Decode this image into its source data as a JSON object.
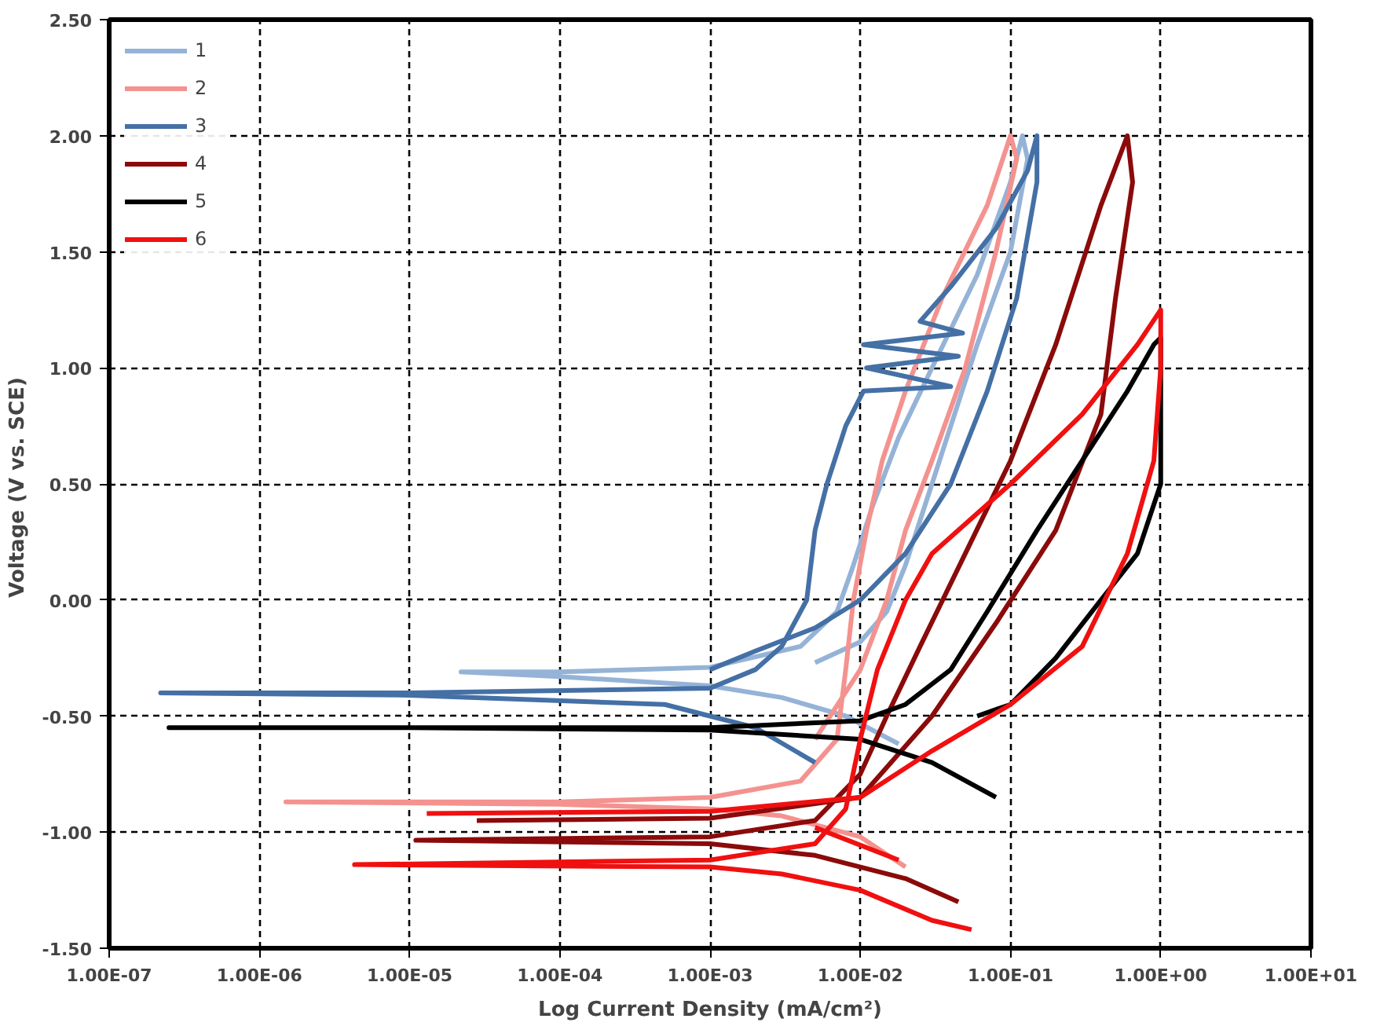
{
  "chart_data": {
    "type": "line",
    "xlabel": "Log Current Density (mA/cm²)",
    "ylabel": "Voltage  (V vs. SCE)",
    "log": "x",
    "xlim": [
      1e-07,
      10
    ],
    "ylim": [
      -1.5,
      2.5
    ],
    "xticks": [
      {
        "value": 1e-07,
        "label": "1.00E-07"
      },
      {
        "value": 1e-06,
        "label": "1.00E-06"
      },
      {
        "value": 1e-05,
        "label": "1.00E-05"
      },
      {
        "value": 0.0001,
        "label": "1.00E-04"
      },
      {
        "value": 0.001,
        "label": "1.00E-03"
      },
      {
        "value": 0.01,
        "label": "1.00E-02"
      },
      {
        "value": 0.1,
        "label": "1.00E-01"
      },
      {
        "value": 1,
        "label": "1.00E+00"
      },
      {
        "value": 10,
        "label": "1.00E+01"
      }
    ],
    "yticks": [
      {
        "value": -1.5,
        "label": "-1.50"
      },
      {
        "value": -1,
        "label": "-1.00"
      },
      {
        "value": -0.5,
        "label": "-0.50"
      },
      {
        "value": 0,
        "label": "0.00"
      },
      {
        "value": 0.5,
        "label": "0.50"
      },
      {
        "value": 1,
        "label": "1.00"
      },
      {
        "value": 1.5,
        "label": "1.50"
      },
      {
        "value": 2,
        "label": "2.00"
      },
      {
        "value": 2.5,
        "label": "2.50"
      }
    ],
    "grid": true,
    "legend": "top left",
    "line_style": "solid",
    "marker": "none",
    "series": [
      {
        "name": "1",
        "color": "#95b3d7",
        "x": [
          0.018,
          0.008,
          0.003,
          0.001,
          0.0001,
          2.2e-05,
          0.0001,
          0.001,
          0.004,
          0.007,
          0.009,
          0.012,
          0.018,
          0.03,
          0.06,
          0.1,
          0.12,
          0.13,
          0.1,
          0.06,
          0.03,
          0.02,
          0.015,
          0.01,
          0.005
        ],
        "values": [
          -0.62,
          -0.5,
          -0.42,
          -0.37,
          -0.33,
          -0.31,
          -0.31,
          -0.29,
          -0.2,
          -0.05,
          0.15,
          0.4,
          0.7,
          1.0,
          1.4,
          1.8,
          2.0,
          1.9,
          1.5,
          1.1,
          0.5,
          0.15,
          -0.05,
          -0.18,
          -0.27
        ]
      },
      {
        "name": "2",
        "color": "#f4928f",
        "x": [
          0.02,
          0.01,
          0.003,
          0.001,
          0.0001,
          1.5e-06,
          0.0001,
          0.001,
          0.004,
          0.007,
          0.008,
          0.009,
          0.011,
          0.014,
          0.02,
          0.035,
          0.07,
          0.1,
          0.11,
          0.08,
          0.05,
          0.03,
          0.02,
          0.015,
          0.01,
          0.005
        ],
        "values": [
          -1.15,
          -1.02,
          -0.93,
          -0.9,
          -0.88,
          -0.87,
          -0.87,
          -0.85,
          -0.78,
          -0.6,
          -0.3,
          0.0,
          0.3,
          0.6,
          0.9,
          1.3,
          1.7,
          2.0,
          1.9,
          1.5,
          1.0,
          0.6,
          0.3,
          0.0,
          -0.3,
          -0.6
        ]
      },
      {
        "name": "3",
        "color": "#4470a5",
        "x": [
          0.005,
          0.002,
          0.0005,
          1e-05,
          2.2e-07,
          1e-05,
          0.001,
          0.002,
          0.003,
          0.0044,
          0.005,
          0.006,
          0.008,
          0.0105,
          0.04,
          0.011,
          0.045,
          0.0105,
          0.048,
          0.025,
          0.04,
          0.08,
          0.13,
          0.15,
          0.15,
          0.11,
          0.07,
          0.04,
          0.02,
          0.01,
          0.005,
          0.002,
          0.001
        ],
        "values": [
          -0.7,
          -0.55,
          -0.45,
          -0.41,
          -0.4,
          -0.4,
          -0.38,
          -0.3,
          -0.2,
          0.0,
          0.3,
          0.5,
          0.75,
          0.9,
          0.92,
          1.0,
          1.05,
          1.1,
          1.15,
          1.2,
          1.35,
          1.6,
          1.85,
          2.0,
          1.8,
          1.3,
          0.9,
          0.5,
          0.2,
          0.0,
          -0.12,
          -0.22,
          -0.3
        ]
      },
      {
        "name": "4",
        "color": "#8b0a0a",
        "x": [
          0.045,
          0.02,
          0.005,
          0.001,
          1.1e-05,
          0.001,
          0.005,
          0.01,
          0.015,
          0.025,
          0.05,
          0.1,
          0.2,
          0.4,
          0.6,
          0.65,
          0.5,
          0.4,
          0.2,
          0.08,
          0.03,
          0.01,
          0.001,
          2.8e-05
        ],
        "values": [
          -1.3,
          -1.2,
          -1.1,
          -1.05,
          -1.035,
          -1.02,
          -0.95,
          -0.75,
          -0.5,
          -0.2,
          0.2,
          0.6,
          1.1,
          1.7,
          2.0,
          1.8,
          1.3,
          0.8,
          0.3,
          -0.1,
          -0.5,
          -0.85,
          -0.94,
          -0.95
        ]
      },
      {
        "name": "5",
        "color": "#000000",
        "x": [
          0.08,
          0.03,
          0.01,
          0.001,
          1e-05,
          2.5e-07,
          0.001,
          0.01,
          0.02,
          0.04,
          0.07,
          0.15,
          0.3,
          0.6,
          0.9,
          1,
          1,
          1,
          0.7,
          0.4,
          0.2,
          0.1,
          0.06
        ],
        "values": [
          -0.85,
          -0.7,
          -0.6,
          -0.56,
          -0.55,
          -0.55,
          -0.55,
          -0.52,
          -0.45,
          -0.3,
          -0.05,
          0.3,
          0.6,
          0.9,
          1.1,
          1.13,
          0.9,
          0.5,
          0.2,
          0.0,
          -0.25,
          -0.45,
          -0.5
        ]
      },
      {
        "name": "6",
        "color": "#f01010",
        "x": [
          0.055,
          0.03,
          0.01,
          0.003,
          0.001,
          4.3e-06,
          0.001,
          0.005,
          0.008,
          0.01,
          0.013,
          0.02,
          0.03,
          0.1,
          0.3,
          0.7,
          1,
          1,
          0.9,
          0.6,
          0.3,
          0.1,
          0.03,
          0.01,
          0.001,
          1.3e-05,
          0.001,
          0.005,
          0.018
        ],
        "values": [
          -1.42,
          -1.38,
          -1.25,
          -1.18,
          -1.15,
          -1.14,
          -1.12,
          -1.05,
          -0.9,
          -0.6,
          -0.3,
          0.0,
          0.2,
          0.5,
          0.8,
          1.1,
          1.25,
          1.0,
          0.6,
          0.2,
          -0.2,
          -0.45,
          -0.65,
          -0.85,
          -0.91,
          -0.92,
          null,
          -0.98,
          -1.12
        ]
      }
    ]
  }
}
